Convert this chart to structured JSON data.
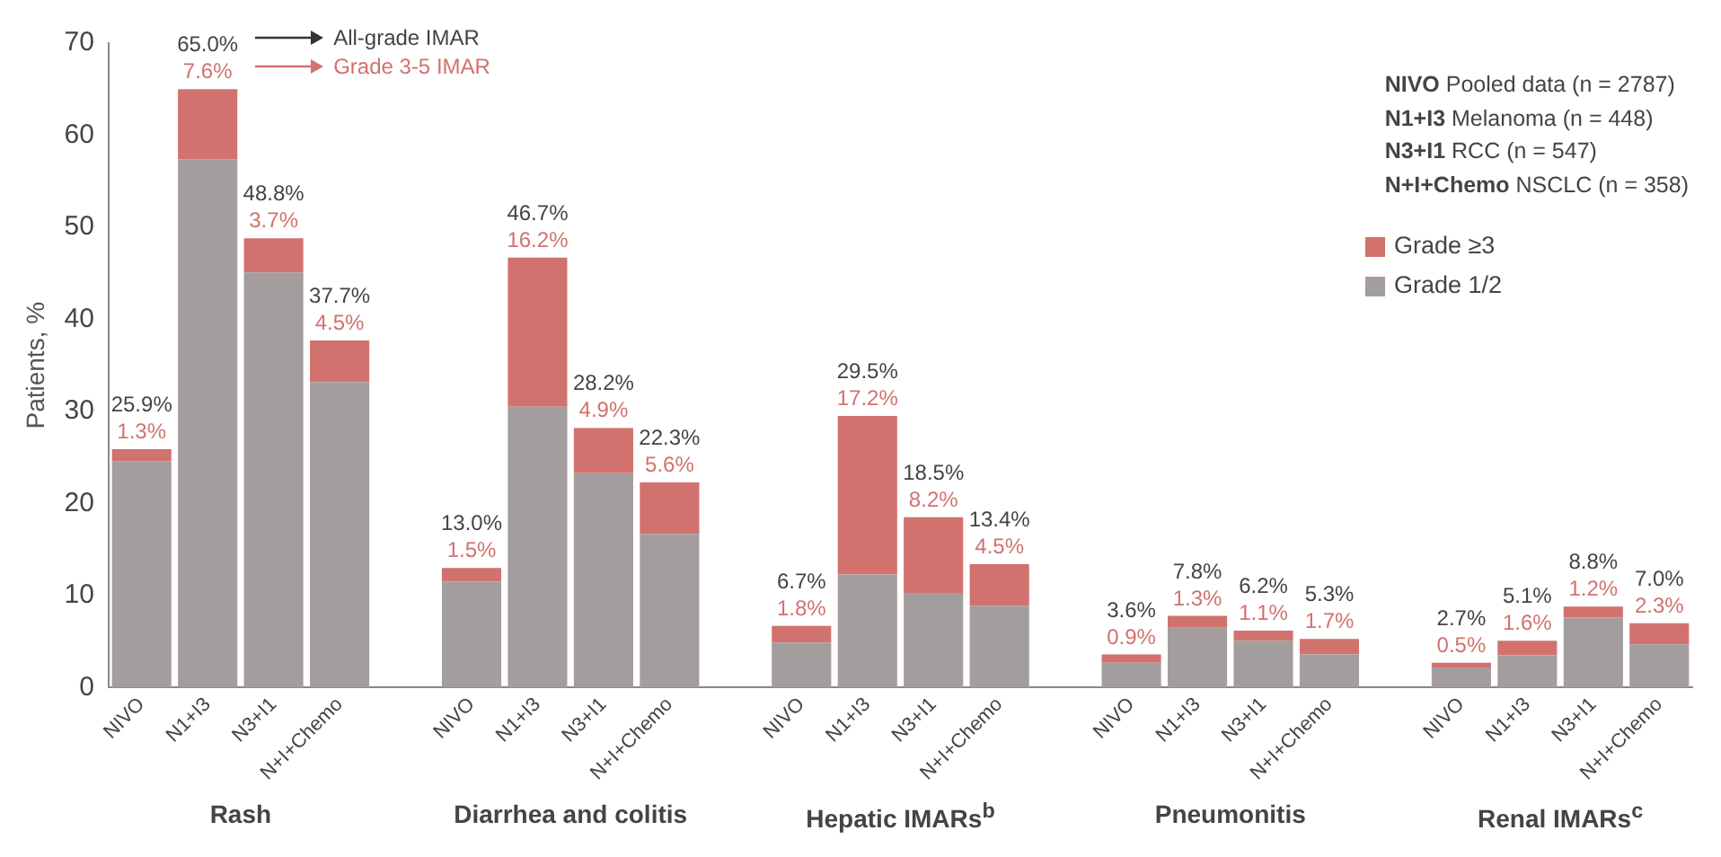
{
  "chart_data": {
    "type": "bar",
    "stacked": true,
    "ylabel": "Patients, %",
    "ylim": [
      0,
      70
    ],
    "yticks": [
      0,
      10,
      20,
      30,
      40,
      50,
      60,
      70
    ],
    "grid": false,
    "legend": "top right",
    "categories": [
      "NIVO",
      "N1+I3",
      "N3+I1",
      "N+I+Chemo",
      null,
      "NIVO",
      "N1+I3",
      "N3+I1",
      "N+I+Chemo",
      null,
      "NIVO",
      "N1+I3",
      "N3+I1",
      "N+I+Chemo",
      null,
      "NIVO",
      "N1+I3",
      "N3+I1",
      "N+I+Chemo",
      null,
      "NIVO",
      "N1+I3",
      "N3+I1",
      "N+I+Chemo"
    ],
    "series": [
      {
        "name": "Grade 1/2",
        "color": "#a39e9d",
        "values": [
          24.6,
          57.4,
          45.1,
          33.2,
          null,
          11.5,
          30.5,
          23.3,
          16.7,
          null,
          4.9,
          12.3,
          10.3,
          8.9,
          null,
          2.7,
          6.5,
          5.1,
          3.6,
          null,
          2.2,
          3.5,
          7.6,
          4.7
        ]
      },
      {
        "name": "Grade ≥3",
        "color": "#d1726f",
        "values": [
          1.3,
          7.6,
          3.7,
          4.5,
          null,
          1.5,
          16.2,
          4.9,
          5.6,
          null,
          1.8,
          17.2,
          8.2,
          4.5,
          null,
          0.9,
          1.3,
          1.1,
          1.7,
          null,
          0.5,
          1.6,
          1.2,
          2.3
        ],
        "value_labels": [
          "1.3%",
          "7.6%",
          "3.7%",
          "4.5%",
          null,
          "1.5%",
          "16.2%",
          "4.9%",
          "5.6%",
          null,
          "1.8%",
          "17.2%",
          "8.2%",
          "4.5%",
          null,
          "0.9%",
          "1.3%",
          "1.1%",
          "1.7%",
          null,
          "0.5%",
          "1.6%",
          "1.2%",
          "2.3%"
        ]
      }
    ],
    "totals": [
      "25.9%",
      "65.0%",
      "48.8%",
      "37.7%",
      null,
      "13.0%",
      "46.7%",
      "28.2%",
      "22.3%",
      null,
      "6.7%",
      "29.5%",
      "18.5%",
      "13.4%",
      null,
      "3.6%",
      "7.8%",
      "6.2%",
      "5.3%",
      null,
      "2.7%",
      "5.1%",
      "8.8%",
      "7.0%"
    ],
    "annotations": [
      "All-grade IMAR",
      "Grade 3-5 IMAR",
      "NIVO Pooled data (n = 2787)",
      "N1+I3 Melanoma (n = 448)",
      "N3+I1 RCC (n = 547)",
      "N+I+Chemo NSCLC (n = 358)",
      "Rash",
      "Diarrhea and colitis",
      "Hepatic IMARs$^{b}$",
      "Pneumonitis",
      "Renal IMARs$^{c}$"
    ]
  }
}
